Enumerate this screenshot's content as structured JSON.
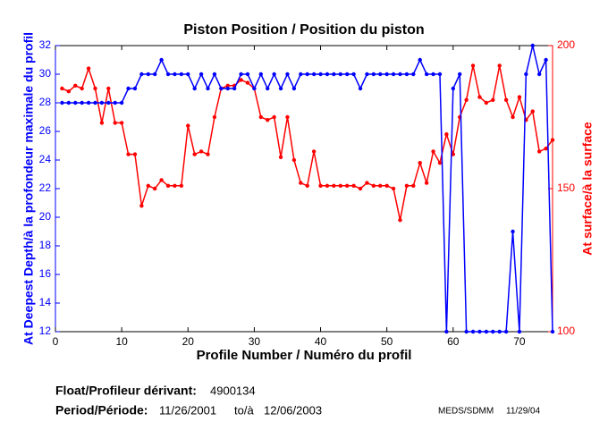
{
  "chart_data": {
    "type": "line",
    "title": "Piston Position / Position du piston",
    "xlabel": "Profile Number / Numéro du profil",
    "ylabel": "At Deepest Depth/à la profondeur maximale du profil",
    "y2label": "At surface/à la surface",
    "x": [
      1,
      2,
      3,
      4,
      5,
      6,
      7,
      8,
      9,
      10,
      11,
      12,
      13,
      14,
      15,
      16,
      17,
      18,
      19,
      20,
      21,
      22,
      23,
      24,
      25,
      26,
      27,
      28,
      29,
      30,
      31,
      32,
      33,
      34,
      35,
      36,
      37,
      38,
      39,
      40,
      41,
      42,
      43,
      44,
      45,
      46,
      47,
      48,
      49,
      50,
      51,
      52,
      53,
      54,
      55,
      56,
      57,
      58,
      59,
      60,
      61,
      62,
      63,
      64,
      65,
      66,
      67,
      68,
      69,
      70,
      71,
      72,
      73,
      74,
      75
    ],
    "series": [
      {
        "name": "At Deepest Depth/à la profondeur maximale du profil",
        "color": "#0000ff",
        "axis": "y",
        "values": [
          28,
          28,
          28,
          28,
          28,
          28,
          28,
          28,
          28,
          28,
          29,
          29,
          30,
          30,
          30,
          31,
          30,
          30,
          30,
          30,
          29,
          30,
          29,
          30,
          29,
          29,
          29,
          30,
          30,
          29,
          30,
          29,
          30,
          29,
          30,
          29,
          30,
          30,
          30,
          30,
          30,
          30,
          30,
          30,
          30,
          29,
          30,
          30,
          30,
          30,
          30,
          30,
          30,
          30,
          31,
          30,
          30,
          30,
          12,
          29,
          30,
          12,
          12,
          12,
          12,
          12,
          12,
          12,
          19,
          12,
          30,
          32,
          30,
          31,
          12
        ]
      },
      {
        "name": "At surface/à la surface",
        "color": "#ff0000",
        "axis": "y2",
        "values": [
          185,
          184,
          186,
          185,
          192,
          185,
          173,
          185,
          173,
          173,
          162,
          162,
          144,
          151,
          150,
          153,
          151,
          151,
          151,
          172,
          162,
          163,
          162,
          175,
          185,
          186,
          186,
          188,
          187,
          185,
          175,
          174,
          175,
          161,
          175,
          160,
          152,
          151,
          163,
          151,
          151,
          151,
          151,
          151,
          151,
          150,
          152,
          151,
          151,
          151,
          150,
          139,
          151,
          151,
          159,
          152,
          163,
          159,
          169,
          162,
          175,
          181,
          193,
          182,
          180,
          181,
          193,
          181,
          175,
          182,
          174,
          177,
          163,
          164,
          167
        ]
      }
    ],
    "xlim": [
      0,
      75
    ],
    "xticks": [
      0,
      10,
      20,
      30,
      40,
      50,
      60,
      70
    ],
    "ylim": [
      12,
      32
    ],
    "yticks": [
      12,
      14,
      16,
      18,
      20,
      22,
      24,
      26,
      28,
      30,
      32
    ],
    "y2lim": [
      100,
      200
    ],
    "y2ticks": [
      100,
      150,
      200
    ],
    "grid": false
  },
  "footer": {
    "float_label": "Float/Profileur dérivant:",
    "float_id": "4900134",
    "period_label": "Period/Période:",
    "start": "11/26/2001",
    "to": "to/à",
    "end": "12/06/2003",
    "source": "MEDS/SDMM",
    "date": "11/29/04"
  }
}
